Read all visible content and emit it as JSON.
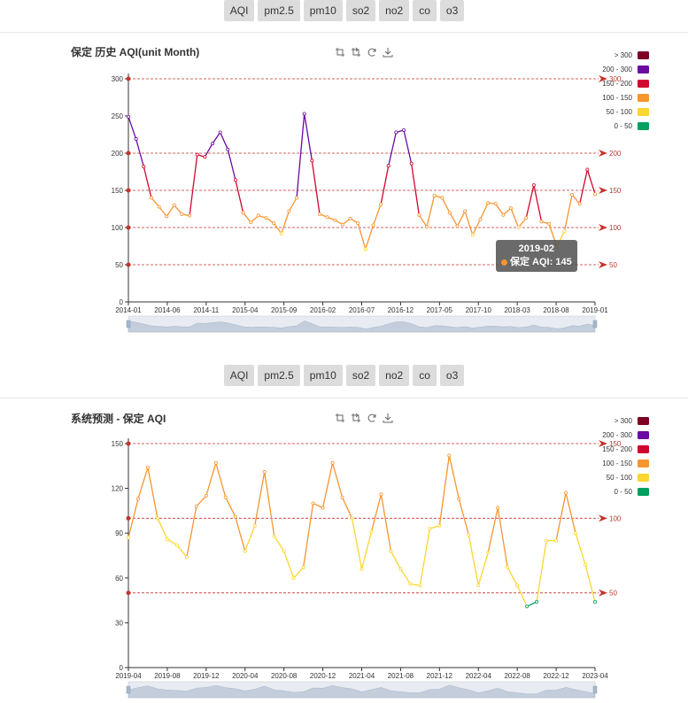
{
  "tabs_top": [
    "AQI",
    "pm2.5",
    "pm10",
    "so2",
    "no2",
    "co",
    "o3"
  ],
  "tabs_bottom": [
    "AQI",
    "pm2.5",
    "pm10",
    "so2",
    "no2",
    "co",
    "o3"
  ],
  "colors": {
    "c0_50": "#00a060",
    "c50_100": "#fcd630",
    "c100_150": "#f7952f",
    "c150_200": "#d0062e",
    "c200_300": "#6a0aa0",
    "c300": "#7e0023",
    "markline": "#c23531"
  },
  "legend": [
    "> 300",
    "200 - 300",
    "150 - 200",
    "100 - 150",
    "50 - 100",
    "0 - 50"
  ],
  "tooltip": {
    "date": "2019-02",
    "label": "保定 AQI: 145"
  },
  "chart_data": [
    {
      "type": "line",
      "title": "保定 历史 AQI(unit Month)",
      "ylim": [
        0,
        300
      ],
      "yticks": [
        0,
        50,
        100,
        150,
        200,
        250,
        300
      ],
      "xticks": [
        "2014-01",
        "2014-06",
        "2014-11",
        "2015-04",
        "2015-09",
        "2016-02",
        "2016-07",
        "2016-12",
        "2017-05",
        "2017-10",
        "2018-03",
        "2018-08",
        "2019-01"
      ],
      "marklines": [
        {
          "value": 300,
          "label": "300"
        },
        {
          "value": 200,
          "label": "200"
        },
        {
          "value": 150,
          "label": "150"
        },
        {
          "value": 100,
          "label": "100"
        },
        {
          "value": 50,
          "label": "50"
        }
      ],
      "visual_map": [
        "> 300",
        "200 - 300",
        "150 - 200",
        "100 - 150",
        "50 - 100",
        "0 - 50"
      ],
      "series": [
        {
          "values": [
            249,
            219,
            182,
            140,
            128,
            115,
            130,
            118,
            116,
            198,
            195,
            213,
            228,
            205,
            164,
            120,
            107,
            116,
            113,
            106,
            92,
            122,
            140,
            253,
            190,
            118,
            114,
            110,
            104,
            112,
            106,
            71,
            103,
            131,
            183,
            228,
            231,
            186,
            117,
            101,
            143,
            140,
            120,
            102,
            122,
            90,
            111,
            133,
            132,
            117,
            126,
            100,
            113,
            157,
            108,
            105,
            74,
            95,
            144,
            132,
            178,
            145
          ]
        }
      ]
    },
    {
      "type": "line",
      "title": "系统预测 - 保定 AQI",
      "ylim": [
        0,
        150
      ],
      "yticks": [
        0,
        30,
        60,
        90,
        120,
        150
      ],
      "xticks": [
        "2019-04",
        "2019-08",
        "2019-12",
        "2020-04",
        "2020-08",
        "2020-12",
        "2021-04",
        "2021-08",
        "2021-12",
        "2022-04",
        "2022-08",
        "2022-12",
        "2023-04"
      ],
      "marklines": [
        {
          "value": 150,
          "label": "150"
        },
        {
          "value": 100,
          "label": "100"
        },
        {
          "value": 50,
          "label": "50"
        }
      ],
      "visual_map": [
        "> 300",
        "200 - 300",
        "150 - 200",
        "100 - 150",
        "50 - 100",
        "0 - 50"
      ],
      "series": [
        {
          "values": [
            87,
            113,
            134,
            100,
            86,
            82,
            74,
            108,
            115,
            137,
            114,
            101,
            78,
            95,
            131,
            88,
            78,
            60,
            67,
            110,
            107,
            137,
            114,
            100,
            66,
            91,
            116,
            78,
            66,
            56,
            55,
            93,
            95,
            142,
            113,
            89,
            55,
            77,
            107,
            67,
            55,
            41,
            44,
            85,
            85,
            117,
            90,
            69,
            44
          ]
        }
      ]
    }
  ]
}
